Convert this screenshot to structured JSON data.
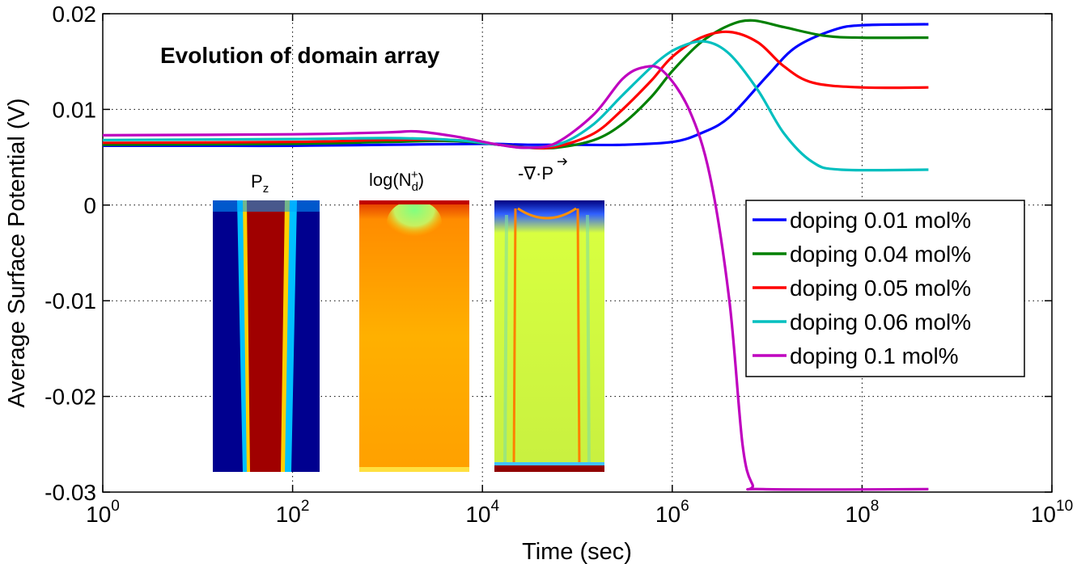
{
  "chart_data": {
    "type": "line",
    "title": "Evolution of domain array",
    "xlabel": "Time (sec)",
    "ylabel": "Average Surface Potential (V)",
    "xscale": "log",
    "xlim": [
      1,
      10000000000
    ],
    "ylim": [
      -0.03,
      0.02
    ],
    "grid": true,
    "legend_position": "right",
    "x_ticks": [
      {
        "base": "10",
        "exp": "0",
        "value": 1
      },
      {
        "base": "10",
        "exp": "2",
        "value": 100
      },
      {
        "base": "10",
        "exp": "4",
        "value": 10000
      },
      {
        "base": "10",
        "exp": "6",
        "value": 1000000
      },
      {
        "base": "10",
        "exp": "8",
        "value": 100000000
      },
      {
        "base": "10",
        "exp": "10",
        "value": 10000000000
      }
    ],
    "y_ticks": [
      {
        "label": "0.02",
        "value": 0.02
      },
      {
        "label": "0.01",
        "value": 0.01
      },
      {
        "label": "0",
        "value": 0
      },
      {
        "label": "-0.01",
        "value": -0.01
      },
      {
        "label": "-0.02",
        "value": -0.02
      },
      {
        "label": "-0.03",
        "value": -0.03
      }
    ],
    "series": [
      {
        "name": "doping 0.01 mol%",
        "color": "#0000ff",
        "points": [
          [
            1,
            0.0062
          ],
          [
            10,
            0.0062
          ],
          [
            100,
            0.0062
          ],
          [
            1000,
            0.0063
          ],
          [
            10000,
            0.0064
          ],
          [
            30000,
            0.0063
          ],
          [
            100000,
            0.0063
          ],
          [
            300000,
            0.0063
          ],
          [
            1000000,
            0.0066
          ],
          [
            2000000,
            0.0075
          ],
          [
            4000000,
            0.0092
          ],
          [
            10000000,
            0.0135
          ],
          [
            20000000,
            0.0165
          ],
          [
            50000000,
            0.0183
          ],
          [
            100000000,
            0.0188
          ],
          [
            500000000,
            0.0189
          ]
        ]
      },
      {
        "name": "doping 0.04 mol%",
        "color": "#008000",
        "points": [
          [
            1,
            0.0063
          ],
          [
            100,
            0.0064
          ],
          [
            1000,
            0.0066
          ],
          [
            5000,
            0.0067
          ],
          [
            15000,
            0.0063
          ],
          [
            30000,
            0.006
          ],
          [
            60000,
            0.006
          ],
          [
            150000,
            0.0068
          ],
          [
            300000,
            0.0085
          ],
          [
            600000,
            0.0113
          ],
          [
            1000000,
            0.014
          ],
          [
            2000000,
            0.017
          ],
          [
            4000000,
            0.0188
          ],
          [
            7000000,
            0.0193
          ],
          [
            15000000,
            0.0186
          ],
          [
            40000000,
            0.0177
          ],
          [
            100000000,
            0.0175
          ],
          [
            500000000,
            0.0175
          ]
        ]
      },
      {
        "name": "doping 0.05 mol%",
        "color": "#ff0000",
        "points": [
          [
            1,
            0.0065
          ],
          [
            100,
            0.0066
          ],
          [
            1000,
            0.0068
          ],
          [
            5000,
            0.0068
          ],
          [
            15000,
            0.0063
          ],
          [
            30000,
            0.006
          ],
          [
            60000,
            0.0061
          ],
          [
            150000,
            0.0075
          ],
          [
            300000,
            0.01
          ],
          [
            600000,
            0.013
          ],
          [
            1000000,
            0.0155
          ],
          [
            2000000,
            0.0175
          ],
          [
            4000000,
            0.0181
          ],
          [
            8000000,
            0.017
          ],
          [
            15000000,
            0.0145
          ],
          [
            30000000,
            0.0128
          ],
          [
            100000000,
            0.0123
          ],
          [
            500000000,
            0.0123
          ]
        ]
      },
      {
        "name": "doping 0.06 mol%",
        "color": "#00bfbf",
        "points": [
          [
            1,
            0.0068
          ],
          [
            100,
            0.0069
          ],
          [
            1000,
            0.007
          ],
          [
            5000,
            0.0068
          ],
          [
            15000,
            0.0063
          ],
          [
            30000,
            0.006
          ],
          [
            70000,
            0.0065
          ],
          [
            150000,
            0.0085
          ],
          [
            300000,
            0.0115
          ],
          [
            700000,
            0.015
          ],
          [
            1200000,
            0.0165
          ],
          [
            2200000,
            0.0171
          ],
          [
            4000000,
            0.0158
          ],
          [
            8000000,
            0.012
          ],
          [
            15000000,
            0.0075
          ],
          [
            30000000,
            0.0045
          ],
          [
            60000000,
            0.0037
          ],
          [
            500000000,
            0.0037
          ]
        ]
      },
      {
        "name": "doping 0.1 mol%",
        "color": "#bf00bf",
        "points": [
          [
            1,
            0.0073
          ],
          [
            100,
            0.0074
          ],
          [
            1000,
            0.0076
          ],
          [
            2000,
            0.0077
          ],
          [
            5000,
            0.0072
          ],
          [
            15000,
            0.0063
          ],
          [
            30000,
            0.006
          ],
          [
            60000,
            0.0065
          ],
          [
            150000,
            0.0095
          ],
          [
            300000,
            0.0132
          ],
          [
            500000,
            0.0144
          ],
          [
            800000,
            0.014
          ],
          [
            1500000,
            0.01
          ],
          [
            2500000,
            0.003
          ],
          [
            4000000,
            -0.01
          ],
          [
            5500000,
            -0.025
          ],
          [
            7000000,
            -0.0292
          ],
          [
            9000000,
            -0.0297
          ],
          [
            500000000,
            -0.0297
          ]
        ]
      }
    ]
  },
  "insets": [
    {
      "label": "P",
      "sub": "z",
      "sup": "",
      "suffix": ""
    },
    {
      "label": "log(N",
      "sub": "d",
      "sup": "+",
      "suffix": ")"
    },
    {
      "label": "-∇·P",
      "sub": "",
      "sup": "",
      "suffix": ""
    }
  ]
}
